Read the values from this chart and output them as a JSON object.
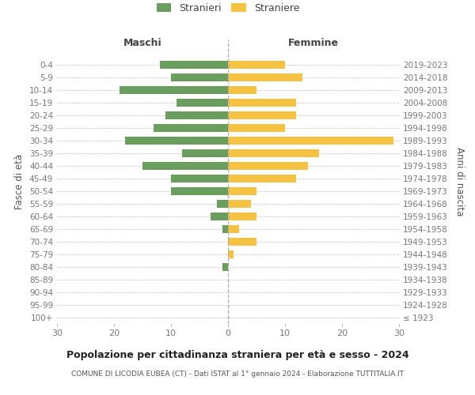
{
  "age_groups": [
    "100+",
    "95-99",
    "90-94",
    "85-89",
    "80-84",
    "75-79",
    "70-74",
    "65-69",
    "60-64",
    "55-59",
    "50-54",
    "45-49",
    "40-44",
    "35-39",
    "30-34",
    "25-29",
    "20-24",
    "15-19",
    "10-14",
    "5-9",
    "0-4"
  ],
  "birth_years": [
    "≤ 1923",
    "1924-1928",
    "1929-1933",
    "1934-1938",
    "1939-1943",
    "1944-1948",
    "1949-1953",
    "1954-1958",
    "1959-1963",
    "1964-1968",
    "1969-1973",
    "1974-1978",
    "1979-1983",
    "1984-1988",
    "1989-1993",
    "1994-1998",
    "1999-2003",
    "2004-2008",
    "2009-2013",
    "2014-2018",
    "2019-2023"
  ],
  "males": [
    0,
    0,
    0,
    0,
    1,
    0,
    0,
    1,
    3,
    2,
    10,
    10,
    15,
    8,
    18,
    13,
    11,
    9,
    19,
    10,
    12
  ],
  "females": [
    0,
    0,
    0,
    0,
    0,
    1,
    5,
    2,
    5,
    4,
    5,
    12,
    14,
    16,
    29,
    10,
    12,
    12,
    5,
    13,
    10
  ],
  "male_color": "#6a9e5e",
  "female_color": "#f5c242",
  "title": "Popolazione per cittadinanza straniera per età e sesso - 2024",
  "subtitle": "COMUNE DI LICODIA EUBEA (CT) - Dati ISTAT al 1° gennaio 2024 - Elaborazione TUTTITALIA.IT",
  "xlabel_left": "Maschi",
  "xlabel_right": "Femmine",
  "ylabel_left": "Fasce di età",
  "ylabel_right": "Anni di nascita",
  "legend_male": "Stranieri",
  "legend_female": "Straniere",
  "xlim": 30,
  "background_color": "#ffffff",
  "grid_color": "#cccccc",
  "axis_label_color": "#555555",
  "tick_label_color": "#777777"
}
